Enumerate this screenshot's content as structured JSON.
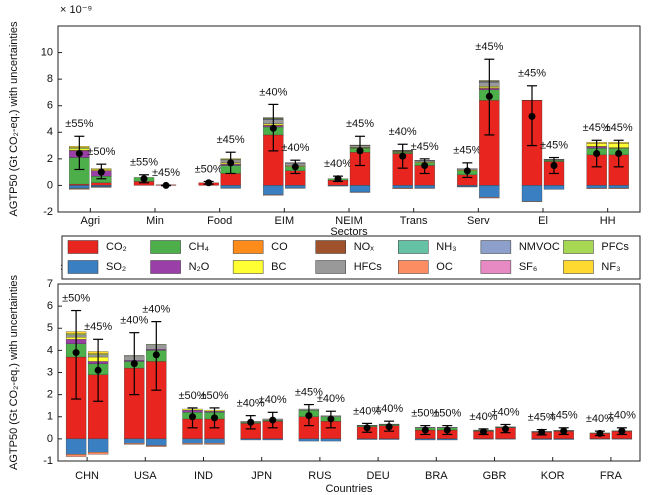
{
  "chart_data": [
    {
      "type": "stacked-bar-errorbar",
      "y_scale_label": "× 10⁻⁹",
      "ylabel": "AGTP50 (Gt CO₂-eq.) with uncertainties",
      "xlabel": "Sectors",
      "categories": [
        "Agri",
        null,
        "Min",
        null,
        "Food",
        null,
        "EIM",
        null,
        "NEIM",
        null,
        "Trans",
        null,
        "Serv",
        null,
        "El",
        null,
        "HH",
        null
      ],
      "ylim": [
        -2,
        12
      ],
      "yticks": [
        -2,
        0,
        2,
        4,
        6,
        8,
        10
      ],
      "series": [
        {
          "name": "CO₂",
          "color": "#e8251e",
          "values": [
            0.1,
            0.2,
            0.3,
            0.05,
            0.2,
            0.9,
            3.8,
            1.1,
            0.4,
            2.5,
            2.4,
            1.5,
            0.8,
            6.4,
            6.4,
            1.8,
            2.3,
            2.3
          ]
        },
        {
          "name": "SO₂",
          "color": "#3a7fc1",
          "values": [
            -0.2,
            -0.1,
            0,
            0,
            0,
            -0.2,
            -0.7,
            -0.2,
            -0.05,
            -0.5,
            -0.2,
            -0.2,
            -0.1,
            -0.9,
            -1.2,
            -0.3,
            -0.2,
            -0.2
          ]
        },
        {
          "name": "CH₄",
          "color": "#4daf4a",
          "values": [
            2.0,
            0.5,
            0.3,
            0,
            0,
            0.6,
            0.6,
            0.3,
            0.1,
            0.3,
            0.1,
            0.2,
            0.3,
            0.8,
            0,
            0.1,
            0.5,
            0.5
          ]
        },
        {
          "name": "N₂O",
          "color": "#9b3fa8",
          "values": [
            0.5,
            0.4,
            0,
            0,
            0,
            0.1,
            0.1,
            0,
            0,
            0,
            0,
            0,
            0,
            0.1,
            0,
            0,
            0.1,
            0
          ]
        },
        {
          "name": "CO",
          "color": "#ff8c1a",
          "values": [
            0.05,
            0.02,
            0,
            0,
            0,
            0.02,
            0.05,
            0.02,
            0,
            0.03,
            0.03,
            0.02,
            0.02,
            0.05,
            0,
            0,
            0.05,
            0.05
          ]
        },
        {
          "name": "BC",
          "color": "#ffff33",
          "values": [
            0.1,
            0.1,
            0,
            0,
            0,
            0.1,
            0.1,
            0.05,
            0,
            0.05,
            0.05,
            0.05,
            0.05,
            0.1,
            0,
            0,
            0.2,
            0.3
          ]
        },
        {
          "name": "NOₓ",
          "color": "#a0522d",
          "values": [
            0,
            0,
            0,
            0,
            0,
            0,
            0,
            0,
            0,
            0,
            0,
            0,
            0,
            0,
            0,
            0,
            0,
            0
          ]
        },
        {
          "name": "HFCs",
          "color": "#999999",
          "values": [
            0,
            0,
            0,
            0,
            0,
            0.2,
            0.3,
            0.2,
            0,
            0.1,
            0.05,
            0.1,
            0.1,
            0.3,
            0,
            0.05,
            0,
            0
          ]
        },
        {
          "name": "NH₃",
          "color": "#66c2a5",
          "values": [
            -0.05,
            -0.02,
            0,
            0,
            0,
            0,
            0,
            0,
            0,
            0,
            0,
            0,
            0,
            0,
            0,
            0,
            0,
            0
          ]
        },
        {
          "name": "OC",
          "color": "#fc8d62",
          "values": [
            -0.05,
            -0.03,
            0,
            0,
            0,
            -0.02,
            -0.05,
            -0.02,
            0,
            -0.03,
            -0.05,
            -0.03,
            -0.02,
            -0.05,
            -0.02,
            0,
            -0.05,
            -0.05
          ]
        },
        {
          "name": "NMVOC",
          "color": "#8da0cb",
          "values": [
            0,
            0,
            0,
            0,
            0,
            0,
            0.05,
            0.02,
            0,
            0.02,
            0.02,
            0.02,
            0,
            0.05,
            0,
            0,
            0,
            0
          ]
        },
        {
          "name": "SF₆",
          "color": "#e78ac3",
          "values": [
            0,
            0,
            0,
            0,
            0,
            0,
            0.03,
            0,
            0,
            0.02,
            0,
            0,
            0,
            0.03,
            0.02,
            0.02,
            0,
            0
          ]
        },
        {
          "name": "PFCs",
          "color": "#a6d854",
          "values": [
            0.1,
            0,
            0,
            0,
            0,
            0.05,
            0.05,
            0.02,
            0,
            0.02,
            0,
            0,
            0,
            0.05,
            0,
            0,
            0,
            0
          ]
        },
        {
          "name": "NF₃",
          "color": "#ffd92f",
          "values": [
            0.1,
            0.05,
            0,
            0,
            0,
            0.05,
            0.02,
            0,
            0,
            0,
            0,
            0,
            0,
            0.02,
            0,
            0,
            0.1,
            0.1
          ]
        }
      ],
      "mean": [
        2.4,
        1.0,
        0.5,
        0.0,
        0.2,
        1.7,
        4.3,
        1.4,
        0.5,
        2.6,
        2.2,
        1.5,
        1.1,
        6.7,
        5.2,
        1.5,
        2.4,
        2.4
      ],
      "lower": [
        1.2,
        0.5,
        0.2,
        -0.02,
        0.1,
        0.9,
        2.6,
        0.9,
        0.3,
        1.5,
        1.3,
        0.9,
        0.6,
        3.8,
        3.0,
        0.9,
        1.4,
        1.4
      ],
      "upper": [
        3.7,
        1.6,
        0.8,
        0.02,
        0.3,
        2.5,
        6.1,
        1.9,
        0.7,
        3.7,
        3.1,
        2.0,
        1.7,
        9.5,
        7.5,
        2.1,
        3.4,
        3.4
      ],
      "uncertainty_labels": [
        "±55%",
        "±50%",
        "±55%",
        "±45%",
        "±50%",
        "±45%",
        "±40%",
        "±40%",
        "±40%",
        "±45%",
        "±40%",
        "±45%",
        "±45%",
        "±45%",
        "±45%",
        "±45%",
        "±45%",
        "±45%"
      ]
    },
    {
      "type": "stacked-bar-errorbar",
      "y_scale_label": "× 10⁻⁹",
      "ylabel": "AGTP50 (Gt CO₂-eq.) with uncertainties",
      "xlabel": "Countries",
      "categories": [
        "CHN",
        null,
        "USA",
        null,
        "IND",
        null,
        "JPN",
        null,
        "RUS",
        null,
        "DEU",
        null,
        "BRA",
        null,
        "GBR",
        null,
        "KOR",
        null,
        "FRA",
        null
      ],
      "ylim": [
        -1,
        7
      ],
      "yticks": [
        -1,
        0,
        1,
        2,
        3,
        4,
        5,
        6,
        7
      ],
      "series": [
        {
          "name": "CO₂",
          "color": "#e8251e",
          "values": [
            3.7,
            2.9,
            3.2,
            3.5,
            0.9,
            0.9,
            0.7,
            0.8,
            1.0,
            0.8,
            0.55,
            0.6,
            0.4,
            0.4,
            0.35,
            0.5,
            0.3,
            0.35,
            0.25,
            0.35
          ]
        },
        {
          "name": "SO₂",
          "color": "#3a7fc1",
          "values": [
            -0.7,
            -0.6,
            -0.2,
            -0.3,
            -0.2,
            -0.2,
            -0.05,
            -0.05,
            -0.1,
            -0.1,
            -0.03,
            -0.03,
            -0.05,
            -0.05,
            -0.02,
            -0.02,
            -0.03,
            -0.03,
            -0.02,
            -0.02
          ]
        },
        {
          "name": "CH₄",
          "color": "#4daf4a",
          "values": [
            0.6,
            0.5,
            0.3,
            0.5,
            0.3,
            0.3,
            0.05,
            0.05,
            0.3,
            0.2,
            0.05,
            0.05,
            0.1,
            0.1,
            0.03,
            0.03,
            0.02,
            0.02,
            0.02,
            0.02
          ]
        },
        {
          "name": "N₂O",
          "color": "#9b3fa8",
          "values": [
            0.2,
            0.1,
            0.05,
            0.05,
            0.1,
            0.05,
            0,
            0,
            0,
            0,
            0,
            0,
            0.02,
            0.02,
            0,
            0,
            0,
            0,
            0,
            0
          ]
        },
        {
          "name": "BC",
          "color": "#ffff33",
          "values": [
            0.1,
            0.2,
            0,
            0,
            0.05,
            0.05,
            0,
            0,
            0,
            0,
            0,
            0,
            0,
            0,
            0,
            0,
            0,
            0,
            0,
            0
          ]
        },
        {
          "name": "HFCs",
          "color": "#999999",
          "values": [
            0.1,
            0.1,
            0.2,
            0.2,
            0,
            0,
            0.05,
            0.05,
            0.05,
            0.05,
            0.02,
            0.02,
            0,
            0,
            0.02,
            0.02,
            0.02,
            0.02,
            0,
            0
          ]
        },
        {
          "name": "OC",
          "color": "#fc8d62",
          "values": [
            -0.1,
            -0.1,
            -0.05,
            -0.05,
            -0.05,
            -0.05,
            0,
            0,
            0,
            0,
            0,
            0,
            0,
            0,
            0,
            0,
            0,
            0,
            0,
            0
          ]
        },
        {
          "name": "PFCs",
          "color": "#a6d854",
          "values": [
            0.05,
            0.05,
            0.02,
            0.02,
            0,
            0,
            0,
            0,
            0,
            0,
            0,
            0,
            0,
            0,
            0,
            0,
            0,
            0,
            0,
            0
          ]
        },
        {
          "name": "NF₃",
          "color": "#ffd92f",
          "values": [
            0.1,
            0.1,
            0,
            0,
            0,
            0,
            0,
            0,
            0,
            0,
            0,
            0,
            0,
            0,
            0,
            0,
            0,
            0,
            0,
            0
          ]
        }
      ],
      "mean": [
        3.9,
        3.1,
        3.4,
        3.8,
        1.0,
        0.95,
        0.75,
        0.85,
        1.05,
        0.9,
        0.5,
        0.55,
        0.4,
        0.4,
        0.32,
        0.45,
        0.3,
        0.35,
        0.25,
        0.35
      ],
      "lower": [
        1.8,
        1.7,
        2.0,
        2.2,
        0.5,
        0.5,
        0.45,
        0.5,
        0.6,
        0.5,
        0.3,
        0.35,
        0.2,
        0.2,
        0.2,
        0.28,
        0.18,
        0.2,
        0.15,
        0.2
      ],
      "upper": [
        5.8,
        4.5,
        4.8,
        5.3,
        1.4,
        1.4,
        1.05,
        1.2,
        1.55,
        1.25,
        0.7,
        0.8,
        0.6,
        0.6,
        0.45,
        0.65,
        0.42,
        0.5,
        0.35,
        0.5
      ],
      "uncertainty_labels": [
        "±50%",
        "±45%",
        "±40%",
        "±40%",
        "±50%",
        "±50%",
        "±40%",
        "±40%",
        "±45%",
        "±40%",
        "±40%",
        "±40%",
        "±50%",
        "±50%",
        "±40%",
        "±40%",
        "±45%",
        "±45%",
        "±40%",
        "±40%"
      ]
    }
  ]
}
